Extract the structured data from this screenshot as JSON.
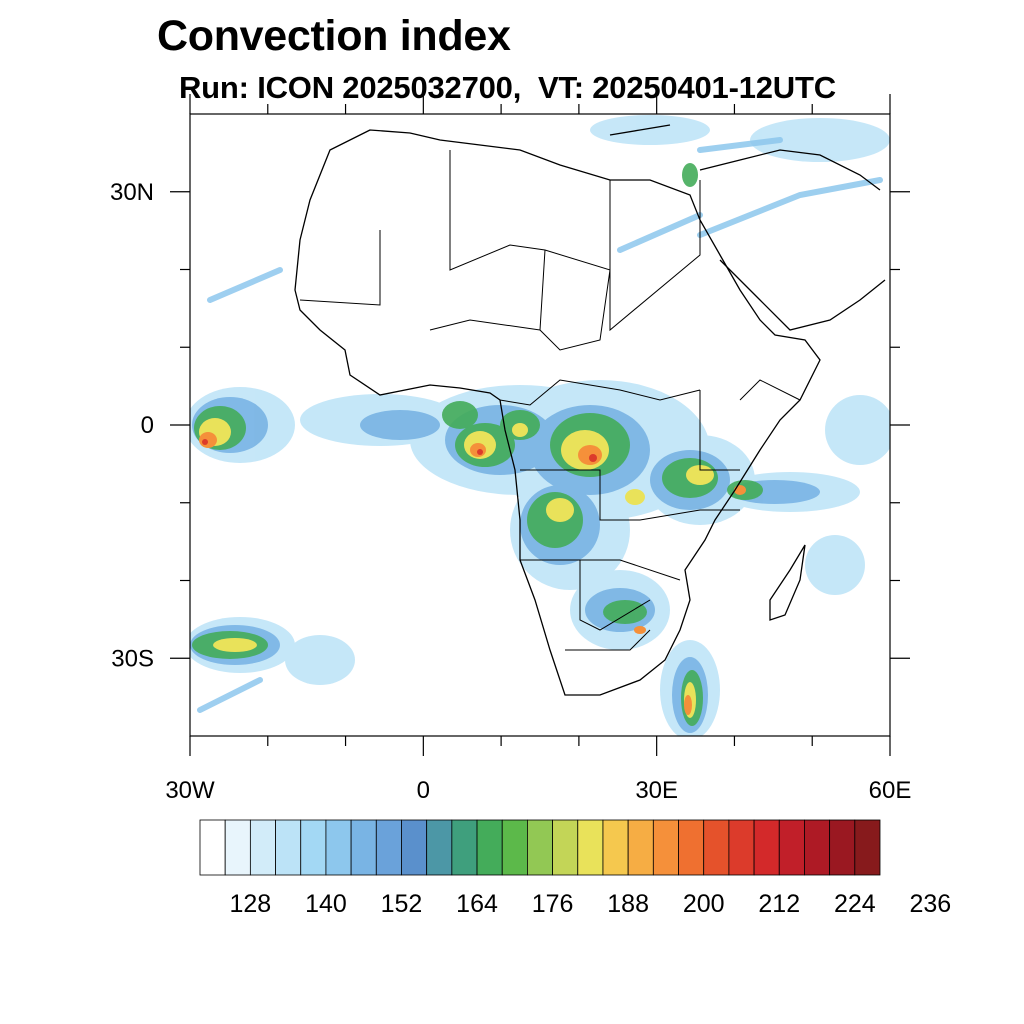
{
  "title": "Convection index",
  "subtitle": "Run: ICON 2025032700,  VT: 20250401-12UTC",
  "map": {
    "lon_range": [
      -30,
      60
    ],
    "lat_range": [
      -40,
      40
    ],
    "x_ticks": [
      {
        "lon": -30,
        "label": "30W"
      },
      {
        "lon": 0,
        "label": "0"
      },
      {
        "lon": 30,
        "label": "30E"
      },
      {
        "lon": 60,
        "label": "60E"
      }
    ],
    "y_ticks": [
      {
        "lat": 30,
        "label": "30N"
      },
      {
        "lat": 0,
        "label": "0"
      },
      {
        "lat": -30,
        "label": "30S"
      }
    ],
    "minor_lon": [
      -20,
      -10,
      10,
      20,
      40,
      50
    ],
    "minor_lat": [
      20,
      10,
      -10,
      -20
    ]
  },
  "colorbar": {
    "colors": [
      "#ffffff",
      "#e8f5fc",
      "#d2ecf9",
      "#bce3f7",
      "#a3d8f4",
      "#8dc7ed",
      "#79b4e4",
      "#6aa2da",
      "#5a90cc",
      "#4c97a6",
      "#3f9f7d",
      "#44ac5a",
      "#5cb94a",
      "#92c854",
      "#c3d557",
      "#e9e25a",
      "#f5c84e",
      "#f6ad44",
      "#f5903a",
      "#ef7030",
      "#e5522b",
      "#dc3b2b",
      "#d3292a",
      "#c11f29",
      "#ae1a25",
      "#9a1821",
      "#871a1c"
    ],
    "labels": [
      "128",
      "140",
      "152",
      "164",
      "176",
      "188",
      "200",
      "212",
      "224",
      "236"
    ]
  }
}
